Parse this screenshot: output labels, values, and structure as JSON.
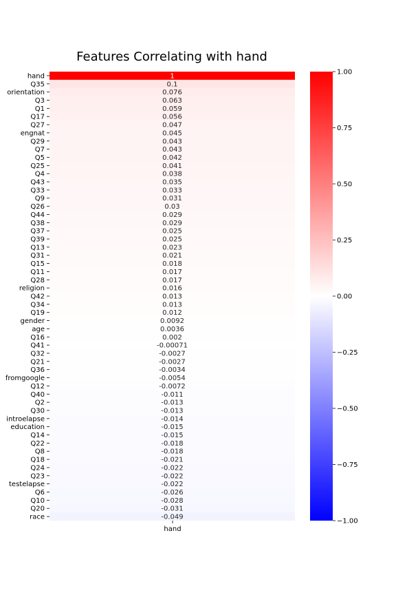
{
  "chart_data": {
    "type": "heatmap",
    "title": "Features Correlating with hand",
    "column_label": "hand",
    "rows": [
      "hand",
      "Q35",
      "orientation",
      "Q3",
      "Q1",
      "Q17",
      "Q27",
      "engnat",
      "Q29",
      "Q7",
      "Q5",
      "Q25",
      "Q4",
      "Q43",
      "Q33",
      "Q9",
      "Q26",
      "Q44",
      "Q38",
      "Q37",
      "Q39",
      "Q13",
      "Q31",
      "Q15",
      "Q11",
      "Q28",
      "religion",
      "Q42",
      "Q34",
      "Q19",
      "gender",
      "age",
      "Q16",
      "Q41",
      "Q32",
      "Q21",
      "Q36",
      "fromgoogle",
      "Q12",
      "Q40",
      "Q2",
      "Q30",
      "introelapse",
      "education",
      "Q14",
      "Q22",
      "Q8",
      "Q18",
      "Q24",
      "Q23",
      "testelapse",
      "Q6",
      "Q10",
      "Q20",
      "race"
    ],
    "values": [
      1,
      0.1,
      0.076,
      0.063,
      0.059,
      0.056,
      0.047,
      0.045,
      0.043,
      0.043,
      0.042,
      0.041,
      0.038,
      0.035,
      0.033,
      0.031,
      0.03,
      0.029,
      0.029,
      0.025,
      0.025,
      0.023,
      0.021,
      0.018,
      0.017,
      0.017,
      0.016,
      0.013,
      0.013,
      0.012,
      0.0092,
      0.0036,
      0.002,
      -0.00071,
      -0.0027,
      -0.0027,
      -0.0034,
      -0.0054,
      -0.0072,
      -0.011,
      -0.013,
      -0.013,
      -0.014,
      -0.015,
      -0.015,
      -0.018,
      -0.018,
      -0.021,
      -0.022,
      -0.022,
      -0.022,
      -0.026,
      -0.028,
      -0.031,
      -0.049
    ],
    "annotations": [
      "1",
      "0.1",
      "0.076",
      "0.063",
      "0.059",
      "0.056",
      "0.047",
      "0.045",
      "0.043",
      "0.043",
      "0.042",
      "0.041",
      "0.038",
      "0.035",
      "0.033",
      "0.031",
      "0.03",
      "0.029",
      "0.029",
      "0.025",
      "0.025",
      "0.023",
      "0.021",
      "0.018",
      "0.017",
      "0.017",
      "0.016",
      "0.013",
      "0.013",
      "0.012",
      "0.0092",
      "0.0036",
      "0.002",
      "-0.00071",
      "-0.0027",
      "-0.0027",
      "-0.0034",
      "-0.0054",
      "-0.0072",
      "-0.011",
      "-0.013",
      "-0.013",
      "-0.014",
      "-0.015",
      "-0.015",
      "-0.018",
      "-0.018",
      "-0.021",
      "-0.022",
      "-0.022",
      "-0.022",
      "-0.026",
      "-0.028",
      "-0.031",
      "-0.049"
    ],
    "colormap": "bwr",
    "colors": {
      "low": "#0000ff",
      "mid": "#ffffff",
      "high": "#ff0000"
    },
    "vmin": -1,
    "vmax": 1,
    "colorbar_ticks": [
      "-1.00",
      "-0.75",
      "-0.50",
      "-0.25",
      "0.00",
      "0.25",
      "0.50",
      "0.75",
      "1.00"
    ],
    "grid": false,
    "legend": "right colorbar"
  }
}
